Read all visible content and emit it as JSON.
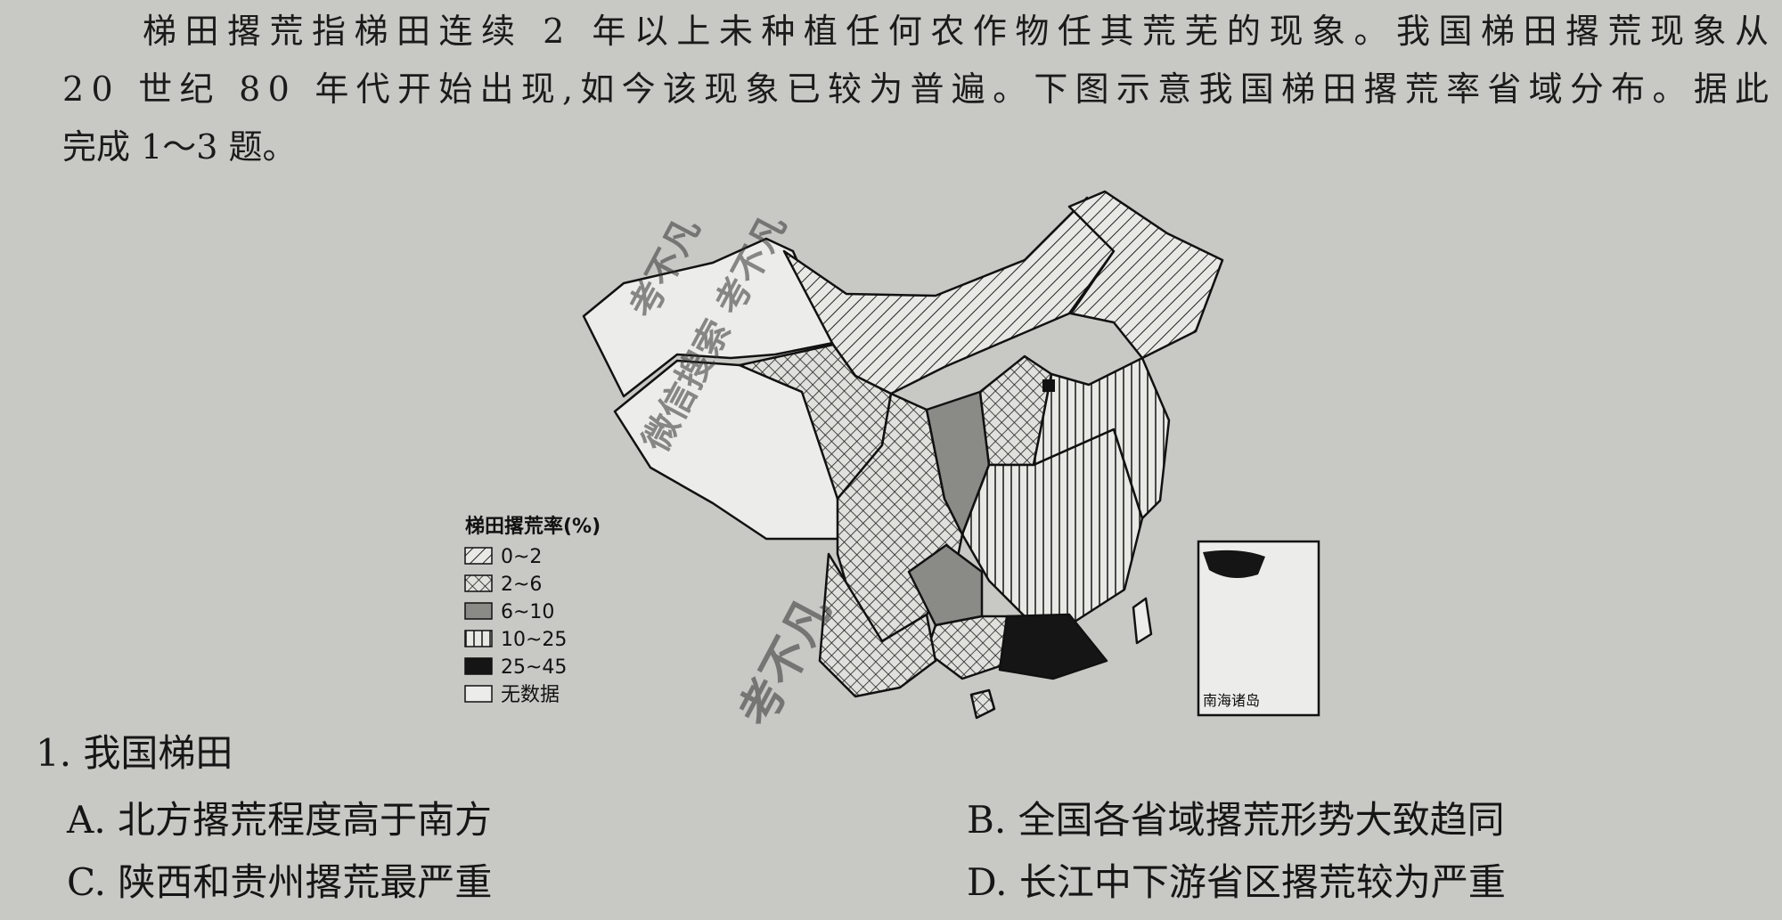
{
  "passage": {
    "lines": [
      "梯田撂荒指梯田连续 2 年以上未种植任何农作物任其荒芜的现象。我国梯田撂荒现象从",
      "20 世纪 80 年代开始出现,如今该现象已较为普遍。下图示意我国梯田撂荒率省域分布。据此",
      "完成 1～3 题。"
    ]
  },
  "map": {
    "legend_title": "梯田撂荒率(%)",
    "legend": [
      "0~2",
      "2~6",
      "6~10",
      "10~25",
      "25~45",
      "无数据"
    ],
    "inset_label": "南海诸岛",
    "watermarks": [
      "考不凡",
      "微信搜索 考不凡",
      "考不凡"
    ]
  },
  "question": {
    "stem": "1. 我国梯田",
    "options": [
      "A. 北方撂荒程度高于南方",
      "B. 全国各省域撂荒形势大致趋同",
      "C. 陕西和贵州撂荒最严重",
      "D. 长江中下游省区撂荒较为严重"
    ]
  }
}
